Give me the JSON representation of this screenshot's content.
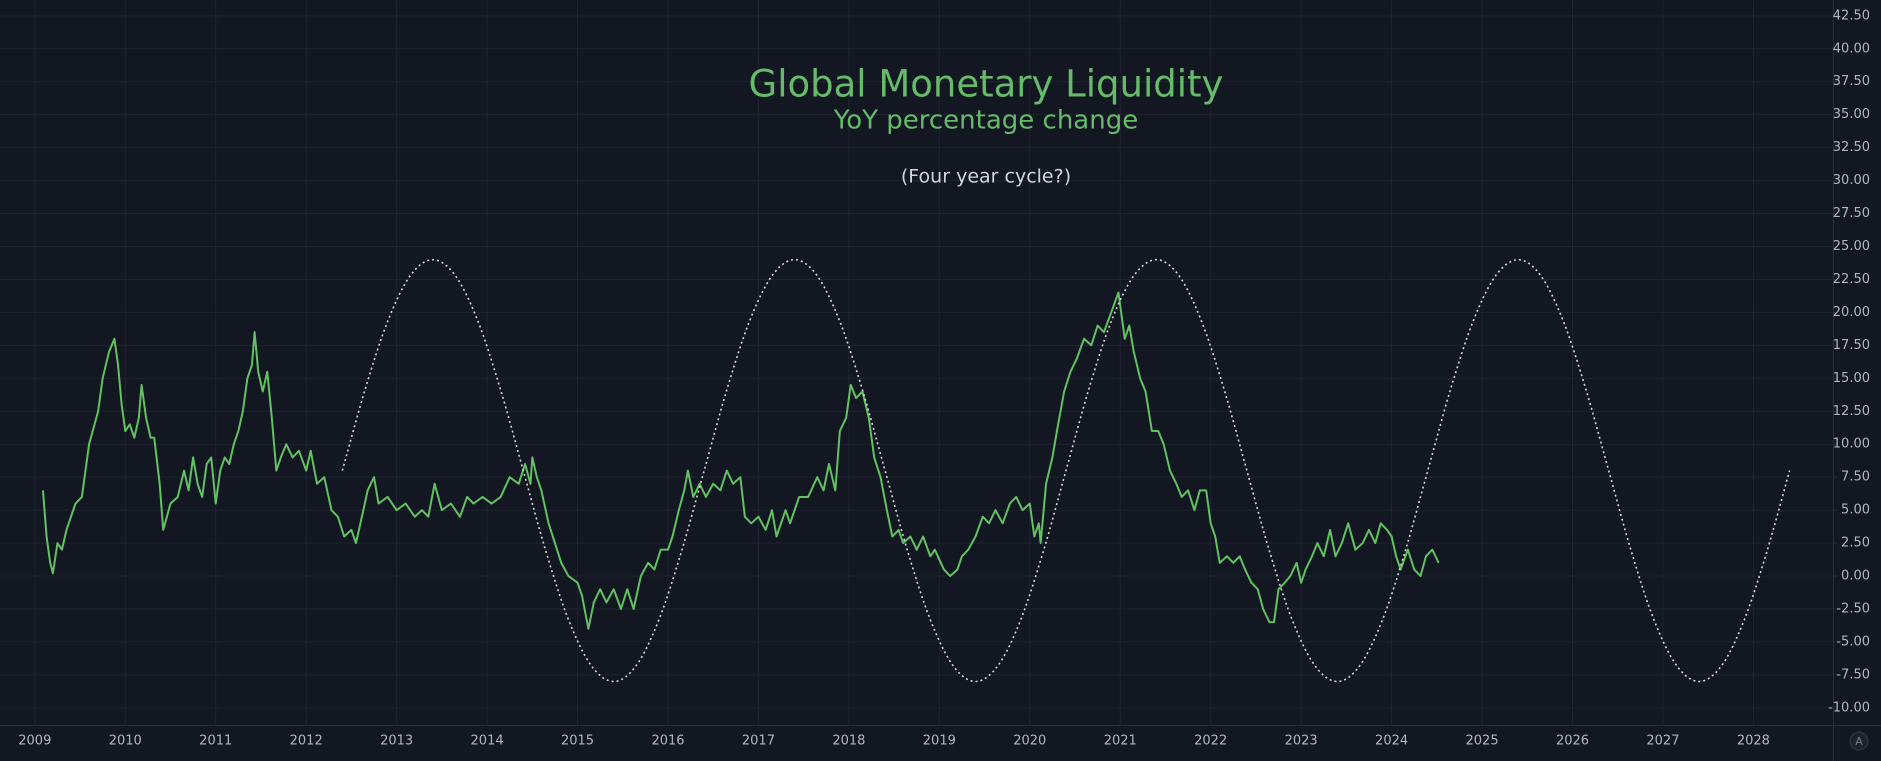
{
  "chart_data": {
    "type": "line",
    "title": "Global Monetary Liquidity",
    "subtitle": "YoY percentage change",
    "annotation": "(Four year cycle?)",
    "auto_scale_button": "A",
    "xlim": [
      2008.615,
      2028.88
    ],
    "ylim": [
      -11.3,
      43.7
    ],
    "xticks": [
      2009,
      2010,
      2011,
      2012,
      2013,
      2014,
      2015,
      2016,
      2017,
      2018,
      2019,
      2020,
      2021,
      2022,
      2023,
      2024,
      2025,
      2026,
      2027,
      2028
    ],
    "yticks": [
      {
        "value": -10,
        "label": "-10.00"
      },
      {
        "value": -7.5,
        "label": "-7.50"
      },
      {
        "value": -5,
        "label": "-5.00"
      },
      {
        "value": -2.5,
        "label": "-2.50"
      },
      {
        "value": 0,
        "label": "0.00"
      },
      {
        "value": 2.5,
        "label": "2.50"
      },
      {
        "value": 5,
        "label": "5.00"
      },
      {
        "value": 7.5,
        "label": "7.50"
      },
      {
        "value": 10,
        "label": "10.00"
      },
      {
        "value": 12.5,
        "label": "12.50"
      },
      {
        "value": 15,
        "label": "15.00"
      },
      {
        "value": 17.5,
        "label": "17.50"
      },
      {
        "value": 20,
        "label": "20.00"
      },
      {
        "value": 22.5,
        "label": "22.50"
      },
      {
        "value": 25,
        "label": "25.00"
      },
      {
        "value": 27.5,
        "label": "27.50"
      },
      {
        "value": 30,
        "label": "30.00"
      },
      {
        "value": 32.5,
        "label": "32.50"
      },
      {
        "value": 35,
        "label": "35.00"
      },
      {
        "value": 37.5,
        "label": "37.50"
      },
      {
        "value": 40,
        "label": "40.00"
      },
      {
        "value": 42.5,
        "label": "42.50"
      }
    ],
    "grid": true,
    "series": [
      {
        "color": "#63c063",
        "dashed": false,
        "smooth": false,
        "x": [
          2009.09,
          2009.13,
          2009.17,
          2009.2,
          2009.25,
          2009.3,
          2009.35,
          2009.45,
          2009.52,
          2009.6,
          2009.7,
          2009.75,
          2009.82,
          2009.88,
          2009.92,
          2009.96,
          2010.0,
          2010.05,
          2010.1,
          2010.15,
          2010.18,
          2010.23,
          2010.28,
          2010.32,
          2010.38,
          2010.42,
          2010.5,
          2010.58,
          2010.65,
          2010.7,
          2010.75,
          2010.8,
          2010.85,
          2010.9,
          2010.95,
          2011.0,
          2011.05,
          2011.1,
          2011.15,
          2011.2,
          2011.25,
          2011.3,
          2011.35,
          2011.4,
          2011.43,
          2011.47,
          2011.52,
          2011.57,
          2011.62,
          2011.67,
          2011.72,
          2011.78,
          2011.85,
          2011.92,
          2012.0,
          2012.05,
          2012.12,
          2012.2,
          2012.28,
          2012.35,
          2012.42,
          2012.5,
          2012.55,
          2012.6,
          2012.68,
          2012.75,
          2012.8,
          2012.9,
          2013.0,
          2013.1,
          2013.2,
          2013.28,
          2013.35,
          2013.42,
          2013.5,
          2013.6,
          2013.7,
          2013.78,
          2013.85,
          2013.95,
          2014.05,
          2014.15,
          2014.25,
          2014.35,
          2014.42,
          2014.48,
          2014.5,
          2014.55,
          2014.6,
          2014.68,
          2014.75,
          2014.82,
          2014.9,
          2015.0,
          2015.05,
          2015.12,
          2015.18,
          2015.25,
          2015.32,
          2015.4,
          2015.48,
          2015.55,
          2015.62,
          2015.7,
          2015.78,
          2015.85,
          2015.92,
          2016.0,
          2016.05,
          2016.12,
          2016.18,
          2016.22,
          2016.28,
          2016.35,
          2016.42,
          2016.5,
          2016.58,
          2016.65,
          2016.72,
          2016.8,
          2016.85,
          2016.92,
          2017.0,
          2017.08,
          2017.15,
          2017.2,
          2017.3,
          2017.35,
          2017.45,
          2017.55,
          2017.65,
          2017.72,
          2017.78,
          2017.85,
          2017.9,
          2017.97,
          2018.02,
          2018.08,
          2018.15,
          2018.22,
          2018.28,
          2018.35,
          2018.42,
          2018.48,
          2018.55,
          2018.6,
          2018.68,
          2018.75,
          2018.82,
          2018.9,
          2018.95,
          2019.05,
          2019.12,
          2019.2,
          2019.25,
          2019.32,
          2019.4,
          2019.48,
          2019.55,
          2019.62,
          2019.7,
          2019.78,
          2019.85,
          2019.92,
          2020.0,
          2020.05,
          2020.1,
          2020.12,
          2020.18,
          2020.25,
          2020.3,
          2020.38,
          2020.45,
          2020.52,
          2020.6,
          2020.68,
          2020.75,
          2020.82,
          2020.9,
          2020.98,
          2021.05,
          2021.1,
          2021.15,
          2021.22,
          2021.28,
          2021.35,
          2021.42,
          2021.48,
          2021.55,
          2021.62,
          2021.68,
          2021.75,
          2021.82,
          2021.88,
          2021.95,
          2022.0,
          2022.05,
          2022.1,
          2022.18,
          2022.25,
          2022.32,
          2022.38,
          2022.45,
          2022.52,
          2022.58,
          2022.65,
          2022.7,
          2022.75,
          2022.82,
          2022.88,
          2022.95,
          2023.0,
          2023.05,
          2023.12,
          2023.18,
          2023.25,
          2023.32,
          2023.38,
          2023.45,
          2023.52,
          2023.6,
          2023.68,
          2023.75,
          2023.82,
          2023.88,
          2023.95,
          2024.0,
          2024.05,
          2024.1,
          2024.18,
          2024.25,
          2024.32,
          2024.38,
          2024.45,
          2024.52
        ],
        "values": [
          6.5,
          3,
          1,
          0.2,
          2.5,
          2,
          3.5,
          5.5,
          6,
          10,
          12.5,
          15,
          17,
          18,
          16,
          13,
          11,
          11.5,
          10.5,
          12,
          14.5,
          12,
          10.5,
          10.5,
          7,
          3.5,
          5.5,
          6,
          8,
          6.5,
          9,
          7,
          6,
          8.5,
          9,
          5.5,
          8,
          9,
          8.5,
          10,
          11,
          12.5,
          15,
          16,
          18.5,
          15.5,
          14,
          15.5,
          12,
          8,
          9,
          10,
          9,
          9.5,
          8,
          9.5,
          7,
          7.5,
          5,
          4.5,
          3,
          3.5,
          2.5,
          4,
          6.5,
          7.5,
          5.5,
          6,
          5,
          5.5,
          4.5,
          5,
          4.5,
          7,
          5,
          5.5,
          4.5,
          6,
          5.5,
          6,
          5.5,
          6,
          7.5,
          7,
          8.5,
          7,
          9,
          7.5,
          6.5,
          4,
          2.5,
          1,
          0,
          -0.5,
          -1.5,
          -4,
          -2,
          -1,
          -2,
          -1,
          -2.5,
          -1,
          -2.5,
          0,
          1,
          0.5,
          2,
          2,
          3,
          5,
          6.5,
          8,
          6,
          7,
          6,
          7,
          6.5,
          8,
          7,
          7.5,
          4.5,
          4,
          4.5,
          3.5,
          5,
          3,
          5,
          4,
          6,
          6,
          7.5,
          6.5,
          8.5,
          6.5,
          11,
          12,
          14.5,
          13.5,
          14,
          12,
          9,
          7.5,
          5,
          3,
          3.5,
          2.5,
          3,
          2,
          3,
          1.5,
          2,
          0.5,
          0,
          0.5,
          1.5,
          2,
          3,
          4.5,
          4,
          5,
          4,
          5.5,
          6,
          5,
          5.5,
          3,
          4,
          2.5,
          7,
          9,
          11,
          14,
          15.5,
          16.5,
          18,
          17.5,
          19,
          18.5,
          20,
          21.5,
          18,
          19,
          17,
          15,
          14,
          11,
          11,
          10,
          8,
          7,
          6,
          6.5,
          5,
          6.5,
          6.5,
          4,
          3,
          1,
          1.5,
          1,
          1.5,
          0.5,
          -0.5,
          -1,
          -2.5,
          -3.5,
          -3.5,
          -1,
          -0.5,
          0,
          1,
          -0.5,
          0.5,
          1.5,
          2.5,
          1.5,
          3.5,
          1.5,
          2.5,
          4,
          2,
          2.5,
          3.5,
          2.5,
          4,
          3.5,
          3,
          1.5,
          0.5,
          2,
          0.5,
          0,
          1.5,
          2,
          1
        ]
      },
      {
        "color": "#d6d6d6",
        "dashed": true,
        "smooth": true,
        "x": [
          2012.4,
          2012.65,
          2012.9,
          2013.15,
          2013.4,
          2013.65,
          2013.9,
          2014.15,
          2014.4,
          2014.65,
          2014.9,
          2015.15,
          2015.4,
          2015.65,
          2015.9,
          2016.15,
          2016.4,
          2016.65,
          2016.9,
          2017.15,
          2017.4,
          2017.65,
          2017.9,
          2018.15,
          2018.4,
          2018.65,
          2018.9,
          2019.15,
          2019.4,
          2019.65,
          2019.9,
          2020.15,
          2020.4,
          2020.65,
          2020.9,
          2021.15,
          2021.4,
          2021.65,
          2021.9,
          2022.15,
          2022.4,
          2022.65,
          2022.9,
          2023.15,
          2023.4,
          2023.65,
          2023.9,
          2024.15,
          2024.4,
          2024.65,
          2024.9,
          2025.15,
          2025.4,
          2025.65,
          2025.9,
          2026.15,
          2026.4,
          2026.65,
          2026.9,
          2027.15,
          2027.4,
          2027.65,
          2027.9,
          2028.15,
          2028.4
        ],
        "values": [
          8,
          14.12,
          19.31,
          22.78,
          24,
          22.78,
          19.31,
          14.12,
          8,
          1.88,
          -3.31,
          -6.78,
          -8,
          -6.78,
          -3.31,
          1.88,
          8,
          14.12,
          19.31,
          22.78,
          24,
          22.78,
          19.31,
          14.12,
          8,
          1.88,
          -3.31,
          -6.78,
          -8,
          -6.78,
          -3.31,
          1.88,
          8,
          14.12,
          19.31,
          22.78,
          24,
          22.78,
          19.31,
          14.12,
          8,
          1.88,
          -3.31,
          -6.78,
          -8,
          -6.78,
          -3.31,
          1.88,
          8,
          14.12,
          19.31,
          22.78,
          24,
          22.78,
          19.31,
          14.12,
          8,
          1.88,
          -3.31,
          -6.78,
          -8,
          -6.78,
          -3.31,
          1.88,
          8
        ]
      }
    ]
  }
}
